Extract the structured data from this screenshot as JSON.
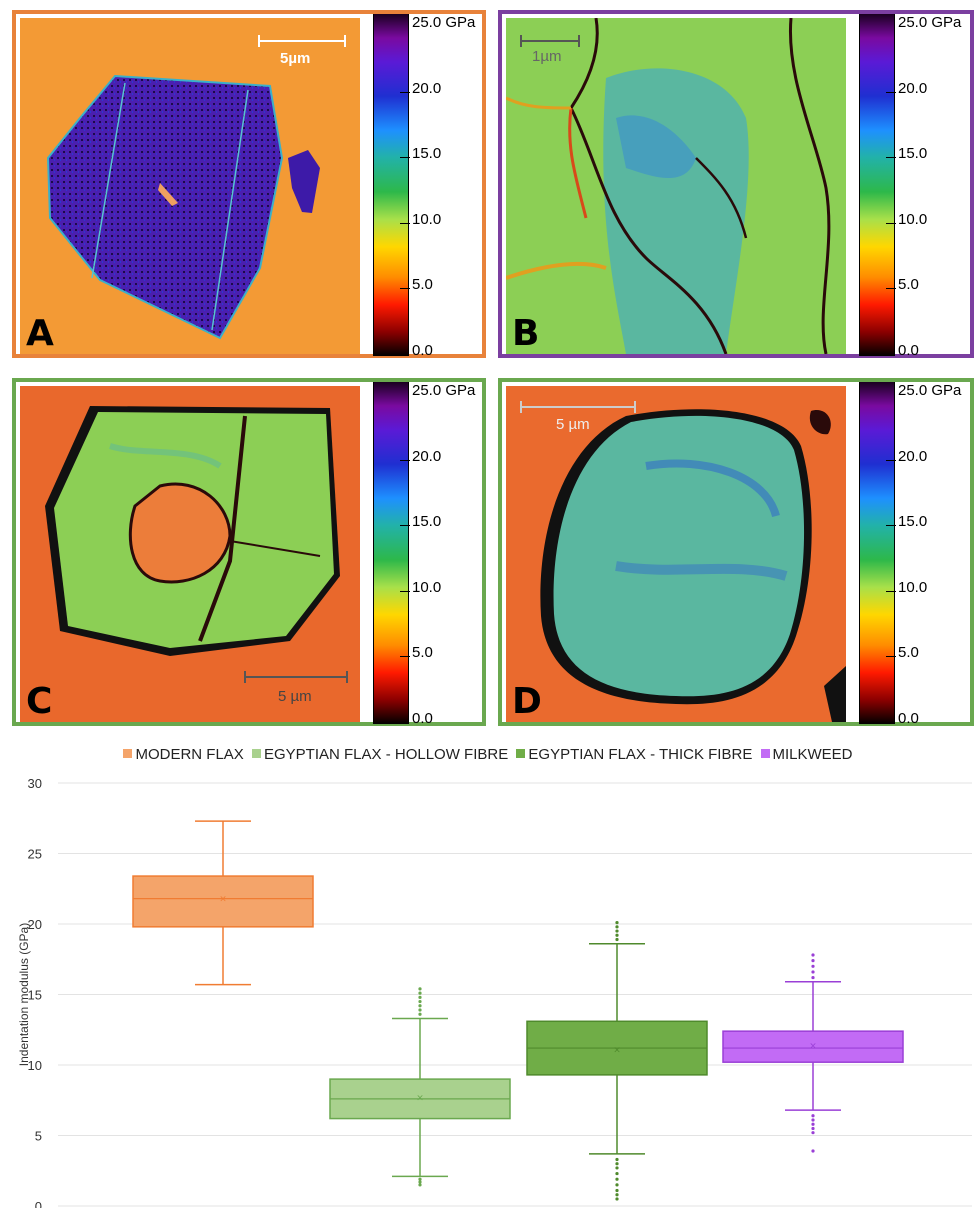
{
  "panels": [
    {
      "letter": "A",
      "scale_label": "5µm",
      "border_color": "#e8823a",
      "colorbar_labels": [
        "25.0 GPa",
        "20.0",
        "15.0",
        "10.0",
        "5.0",
        "0.0"
      ]
    },
    {
      "letter": "B",
      "scale_label": "1µm",
      "border_color": "#7b3fa0",
      "colorbar_labels": [
        "25.0 GPa",
        "20.0",
        "15.0",
        "10.0",
        "5.0",
        "0.0"
      ]
    },
    {
      "letter": "C",
      "scale_label": "5 µm",
      "border_color": "#6aa84f",
      "colorbar_labels": [
        "25.0 GPa",
        "20.0",
        "15.0",
        "10.0",
        "5.0",
        "0.0"
      ]
    },
    {
      "letter": "D",
      "scale_label": "5 µm",
      "border_color": "#6aa84f",
      "colorbar_labels": [
        "25.0 GPa",
        "20.0",
        "15.0",
        "10.0",
        "5.0",
        "0.0"
      ]
    }
  ],
  "chart_data": {
    "type": "box",
    "ylabel": "Indentation modulus (GPa)",
    "xlabel": "",
    "ylim": [
      0,
      30
    ],
    "yticks": [
      0,
      5,
      10,
      15,
      20,
      25,
      30
    ],
    "grid": true,
    "legend_position": "top-center",
    "series": [
      {
        "name": "MODERN FLAX",
        "color": "#f4a46a",
        "stroke": "#f07c32",
        "min": 15.7,
        "q1": 19.8,
        "median": 21.8,
        "mean": 21.8,
        "q3": 23.4,
        "max": 27.3,
        "outliers": []
      },
      {
        "name": "EGYPTIAN FLAX - HOLLOW FIBRE",
        "color": "#a9d18e",
        "stroke": "#6aa84f",
        "min": 2.1,
        "q1": 6.2,
        "median": 7.6,
        "mean": 7.7,
        "q3": 9.0,
        "max": 13.3,
        "outliers": [
          1.5,
          1.7,
          1.9,
          13.6,
          13.9,
          14.2,
          14.5,
          14.8,
          15.1,
          15.4
        ]
      },
      {
        "name": "EGYPTIAN FLAX - THICK FIBRE",
        "color": "#70ad47",
        "stroke": "#4f8a2c",
        "min": 3.7,
        "q1": 9.3,
        "median": 11.2,
        "mean": 11.1,
        "q3": 13.1,
        "max": 18.6,
        "outliers": [
          0.5,
          0.8,
          1.1,
          1.5,
          1.9,
          2.3,
          2.7,
          3.0,
          3.3,
          18.9,
          19.2,
          19.5,
          19.8,
          20.1
        ]
      },
      {
        "name": "MILKWEED",
        "color": "#c26bf5",
        "stroke": "#9a3fd6",
        "min": 6.8,
        "q1": 10.2,
        "median": 11.2,
        "mean": 11.4,
        "q3": 12.4,
        "max": 15.9,
        "outliers": [
          3.9,
          5.2,
          5.5,
          5.8,
          6.1,
          6.4,
          16.2,
          16.6,
          17.0,
          17.4,
          17.8
        ]
      }
    ]
  }
}
